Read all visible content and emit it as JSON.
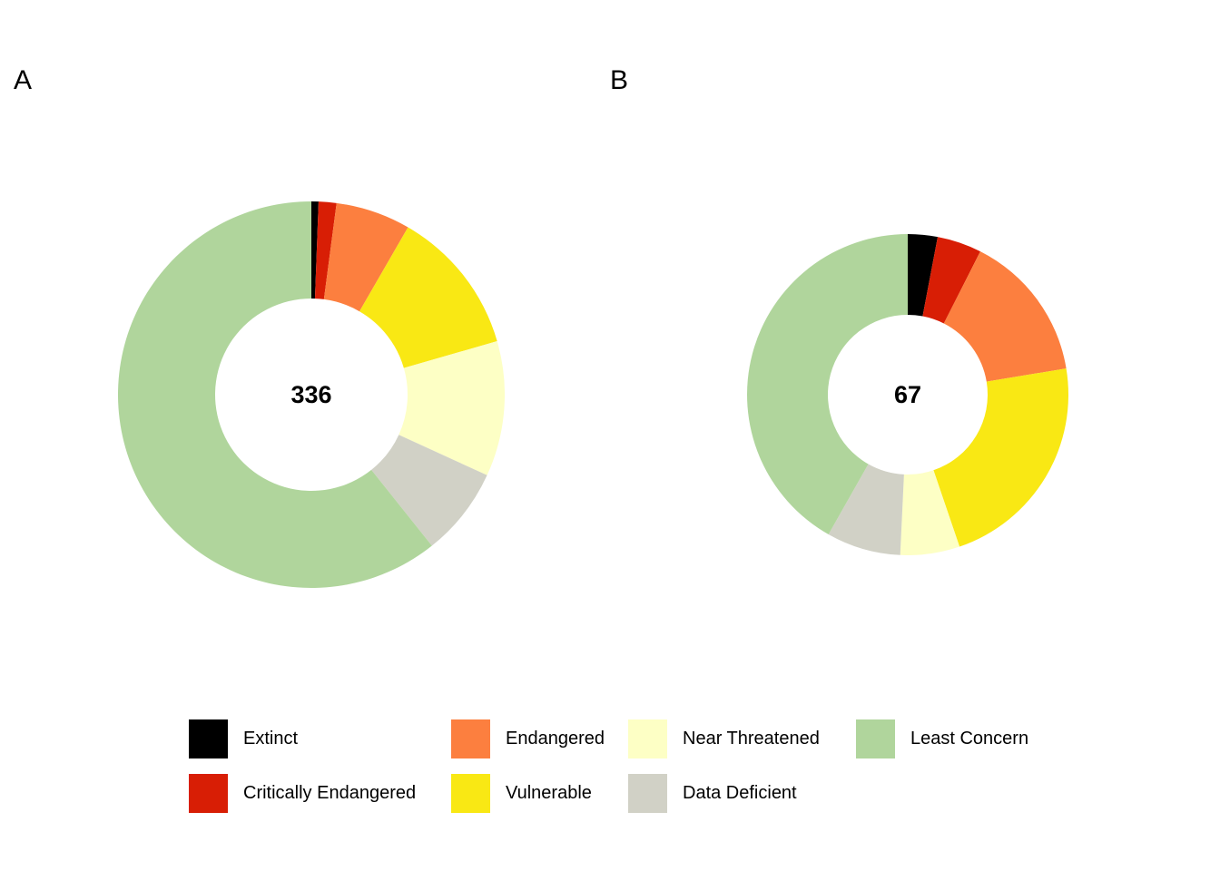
{
  "figure": {
    "background": "#FFFFFF",
    "panel_tags": [
      "A",
      "B"
    ]
  },
  "legend": {
    "position": "bottom",
    "items": [
      {
        "label": "Extinct",
        "color": "#000000"
      },
      {
        "label": "Critically Endangered",
        "color": "#D81E05"
      },
      {
        "label": "Endangered",
        "color": "#FC7F3F"
      },
      {
        "label": "Vulnerable",
        "color": "#F9E814"
      },
      {
        "label": "Near Threatened",
        "color": "#FDFFC5"
      },
      {
        "label": "Data Deficient",
        "color": "#D1D1C6"
      },
      {
        "label": "Least Concern",
        "color": "#B0D59C"
      }
    ]
  },
  "chart_data": [
    {
      "type": "pie",
      "subtype": "donut",
      "panel_tag": "A",
      "center_label": "336",
      "total": 336,
      "categories": [
        "Extinct",
        "Critically Endangered",
        "Endangered",
        "Vulnerable",
        "Near Threatened",
        "Data Deficient",
        "Least Concern"
      ],
      "values": [
        2,
        5,
        21,
        41,
        38,
        25,
        204
      ],
      "colors": [
        "#000000",
        "#D81E05",
        "#FC7F3F",
        "#F9E814",
        "#FDFFC5",
        "#D1D1C6",
        "#B0D59C"
      ],
      "start_angle_deg": 0,
      "direction": "clockwise",
      "inner_radius_ratio": 0.5,
      "title": "",
      "legend_position": "bottom"
    },
    {
      "type": "pie",
      "subtype": "donut",
      "panel_tag": "B",
      "center_label": "67",
      "total": 67,
      "categories": [
        "Extinct",
        "Critically Endangered",
        "Endangered",
        "Vulnerable",
        "Near Threatened",
        "Data Deficient",
        "Least Concern"
      ],
      "values": [
        2,
        3,
        10,
        15,
        4,
        5,
        28
      ],
      "colors": [
        "#000000",
        "#D81E05",
        "#FC7F3F",
        "#F9E814",
        "#FDFFC5",
        "#D1D1C6",
        "#B0D59C"
      ],
      "start_angle_deg": 0,
      "direction": "clockwise",
      "inner_radius_ratio": 0.5,
      "title": "",
      "legend_position": "bottom"
    }
  ]
}
